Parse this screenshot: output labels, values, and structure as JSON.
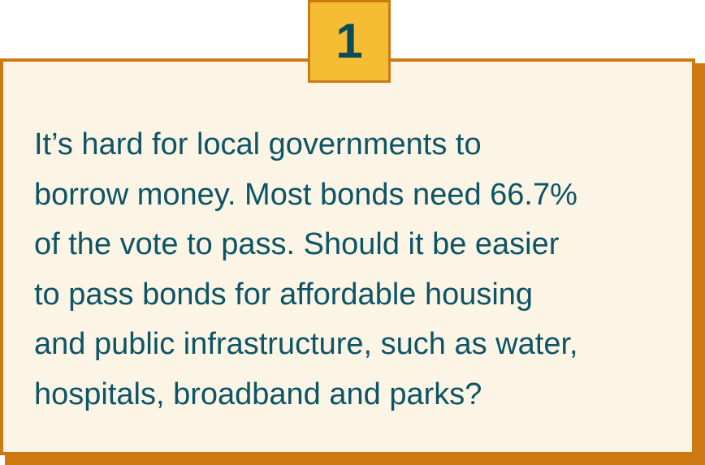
{
  "badge": {
    "number": "1"
  },
  "question": {
    "text": "It’s hard for local governments to\nborrow money. Most bonds need 66.7%\nof the vote to pass. Should it be easier\nto pass bonds for affordable housing\nand public infrastructure, such as water,\nhospitals, broadband and parks?"
  },
  "colors": {
    "card_background": "#fcf5e5",
    "border": "#cd7a13",
    "badge_fill": "#f4bd34",
    "text": "#0d5466"
  }
}
